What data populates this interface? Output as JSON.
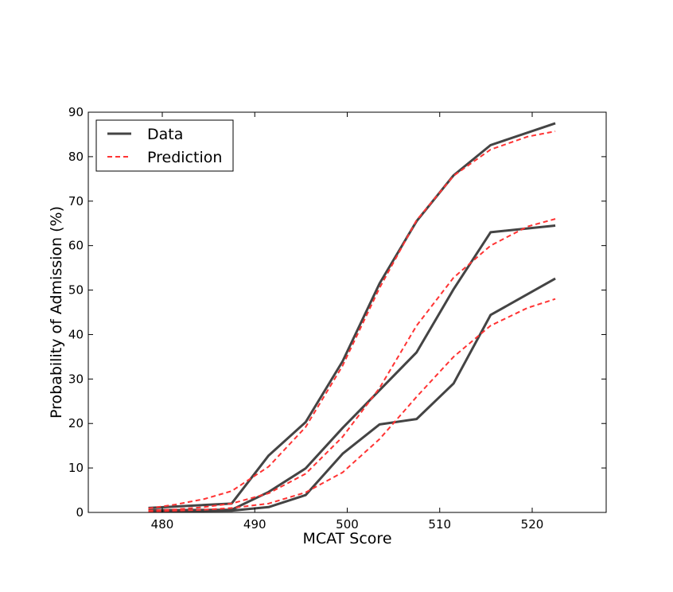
{
  "chart_data": {
    "type": "line",
    "xlabel": "MCAT Score",
    "ylabel": "Probability of Admission (%)",
    "xlim": [
      472,
      528
    ],
    "ylim": [
      0,
      90
    ],
    "xticks": [
      480,
      490,
      500,
      510,
      520
    ],
    "yticks": [
      0,
      10,
      20,
      30,
      40,
      50,
      60,
      70,
      80,
      90
    ],
    "grid": false,
    "legend": {
      "placement": "top-left",
      "entries": [
        {
          "label": "Data",
          "style": "solid",
          "color": "#444444"
        },
        {
          "label": "Prediction",
          "style": "dashed",
          "color": "#ff3333"
        }
      ]
    },
    "series": [
      {
        "group": "Data",
        "style": "solid",
        "color": "#444444",
        "x": [
          478.5,
          487.5,
          491.5,
          495.5,
          499.5,
          503.5,
          507.5,
          511.5,
          515.5,
          522.5
        ],
        "y": [
          1.0,
          2.0,
          12.8,
          20.3,
          34.0,
          51.5,
          65.5,
          75.8,
          82.6,
          87.5
        ]
      },
      {
        "group": "Data",
        "style": "solid",
        "color": "#444444",
        "x": [
          478.5,
          487.5,
          491.5,
          495.5,
          499.5,
          503.5,
          507.5,
          511.5,
          515.5,
          522.5
        ],
        "y": [
          0.5,
          0.6,
          4.6,
          9.9,
          19.0,
          27.5,
          36.0,
          50.2,
          63.0,
          64.5
        ]
      },
      {
        "group": "Data",
        "style": "solid",
        "color": "#444444",
        "x": [
          478.5,
          487.5,
          491.5,
          495.5,
          499.5,
          503.5,
          507.5,
          511.5,
          515.5,
          522.5
        ],
        "y": [
          0.3,
          0.4,
          1.2,
          3.9,
          13.2,
          19.8,
          21.0,
          29.0,
          44.4,
          52.6
        ]
      },
      {
        "group": "Prediction",
        "style": "dashed",
        "color": "#ff3333",
        "x": [
          478.5,
          481.5,
          484.5,
          487.5,
          491.5,
          495.5,
          499.5,
          503.5,
          507.5,
          511.5,
          515.5,
          519.5,
          522.5
        ],
        "y": [
          0.9,
          1.8,
          3.0,
          4.8,
          10.3,
          19.2,
          33.0,
          50.5,
          65.7,
          75.7,
          81.6,
          84.5,
          85.7
        ]
      },
      {
        "group": "Prediction",
        "style": "dashed",
        "color": "#ff3333",
        "x": [
          478.5,
          481.5,
          484.5,
          487.5,
          491.5,
          495.5,
          499.5,
          503.5,
          507.5,
          511.5,
          515.5,
          519.5,
          522.5
        ],
        "y": [
          0.4,
          0.7,
          1.2,
          2.0,
          4.3,
          8.7,
          17.0,
          28.0,
          42.0,
          52.8,
          60.0,
          64.3,
          66.0
        ]
      },
      {
        "group": "Prediction",
        "style": "dashed",
        "color": "#ff3333",
        "x": [
          478.5,
          481.5,
          484.5,
          487.5,
          491.5,
          495.5,
          499.5,
          503.5,
          507.5,
          511.5,
          515.5,
          519.5,
          522.5
        ],
        "y": [
          0.2,
          0.4,
          0.6,
          1.0,
          2.0,
          4.5,
          9.0,
          16.5,
          26.0,
          35.0,
          42.0,
          46.0,
          48.0
        ]
      }
    ]
  }
}
